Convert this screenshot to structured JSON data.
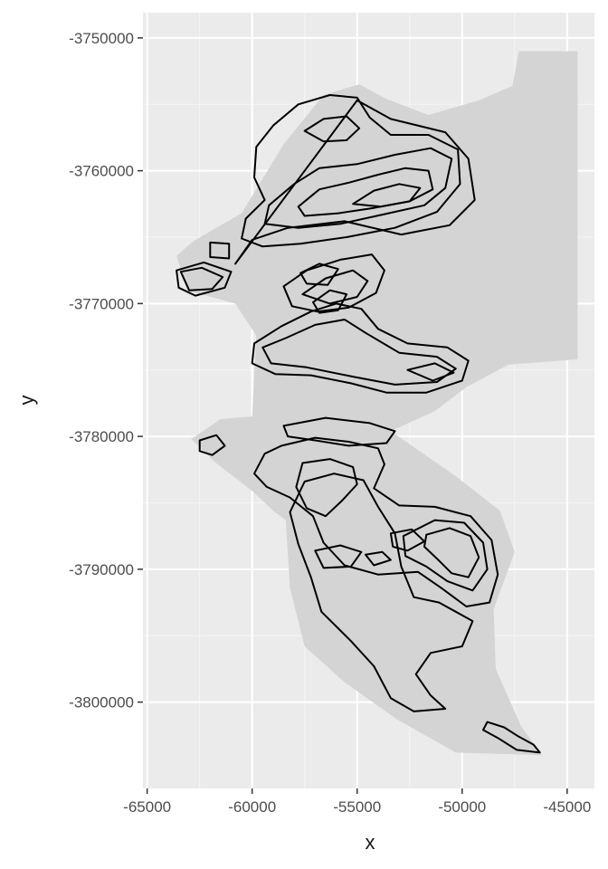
{
  "chart_data": {
    "type": "contour",
    "title": "",
    "xlabel": "x",
    "ylabel": "y",
    "xlim": [
      -65200,
      -43700
    ],
    "ylim": [
      -3806500,
      -3748100
    ],
    "x_ticks": [
      -65000,
      -60000,
      -55000,
      -50000,
      -45000
    ],
    "y_ticks": [
      -3750000,
      -3760000,
      -3770000,
      -3780000,
      -3790000,
      -3800000
    ],
    "x_tick_labels": [
      "-65000",
      "-60000",
      "-55000",
      "-50000",
      "-45000"
    ],
    "y_tick_labels": [
      "-3750000",
      "-3760000",
      "-3770000",
      "-3780000",
      "-3790000",
      "-3800000"
    ],
    "grid": true,
    "legend": "none",
    "colors": {
      "panel_background": "#ebebeb",
      "grid_major": "#ffffff",
      "grid_minor": "#f5f5f5",
      "hillshade": "#d4d4d4",
      "contour": "#000000"
    },
    "hillshade_extent": [
      [
        -62800,
        -3765300
      ],
      [
        -60500,
        -3763200
      ],
      [
        -58500,
        -3758000
      ],
      [
        -56600,
        -3754300
      ],
      [
        -54900,
        -3753500
      ],
      [
        -53600,
        -3754600
      ],
      [
        -51600,
        -3755800
      ],
      [
        -49200,
        -3754700
      ],
      [
        -47600,
        -3753600
      ],
      [
        -47300,
        -3751000
      ],
      [
        -44500,
        -3751000
      ],
      [
        -44500,
        -3774200
      ],
      [
        -47800,
        -3774600
      ],
      [
        -49800,
        -3776300
      ],
      [
        -51300,
        -3778100
      ],
      [
        -53400,
        -3779600
      ],
      [
        -50300,
        -3783000
      ],
      [
        -48200,
        -3785600
      ],
      [
        -47500,
        -3788700
      ],
      [
        -48500,
        -3793000
      ],
      [
        -48400,
        -3797500
      ],
      [
        -47200,
        -3801800
      ],
      [
        -46200,
        -3804000
      ],
      [
        -50300,
        -3803800
      ],
      [
        -53100,
        -3801300
      ],
      [
        -55600,
        -3798500
      ],
      [
        -57500,
        -3795800
      ],
      [
        -58200,
        -3791400
      ],
      [
        -58400,
        -3786300
      ],
      [
        -59000,
        -3785600
      ],
      [
        -60000,
        -3784100
      ],
      [
        -61800,
        -3781900
      ],
      [
        -62900,
        -3780200
      ],
      [
        -61500,
        -3778700
      ],
      [
        -60000,
        -3778500
      ],
      [
        -59800,
        -3772400
      ],
      [
        -60800,
        -3770000
      ],
      [
        -63100,
        -3769000
      ],
      [
        -63600,
        -3766400
      ]
    ],
    "contours": [
      [
        [
          -59200,
          -3762600
        ],
        [
          -58000,
          -3761000
        ],
        [
          -56800,
          -3759800
        ],
        [
          -55000,
          -3759500
        ],
        [
          -53200,
          -3758800
        ],
        [
          -51500,
          -3758300
        ],
        [
          -50500,
          -3759100
        ],
        [
          -50800,
          -3761300
        ],
        [
          -51800,
          -3762600
        ],
        [
          -53800,
          -3763300
        ],
        [
          -55800,
          -3764000
        ],
        [
          -57800,
          -3764300
        ],
        [
          -59400,
          -3764000
        ]
      ],
      [
        [
          -57800,
          -3762700
        ],
        [
          -56800,
          -3761400
        ],
        [
          -55400,
          -3760900
        ],
        [
          -54000,
          -3760300
        ],
        [
          -52700,
          -3759800
        ],
        [
          -51600,
          -3760000
        ],
        [
          -51400,
          -3761400
        ],
        [
          -52500,
          -3762300
        ],
        [
          -54200,
          -3762800
        ],
        [
          -55900,
          -3763200
        ],
        [
          -57500,
          -3763400
        ]
      ],
      [
        [
          -55200,
          -3762500
        ],
        [
          -54200,
          -3761500
        ],
        [
          -53000,
          -3761000
        ],
        [
          -52000,
          -3761300
        ],
        [
          -52500,
          -3762300
        ],
        [
          -53900,
          -3762700
        ]
      ],
      [
        [
          -57500,
          -3757000
        ],
        [
          -56600,
          -3756100
        ],
        [
          -55500,
          -3755900
        ],
        [
          -54900,
          -3756800
        ],
        [
          -55500,
          -3757700
        ],
        [
          -56600,
          -3757800
        ]
      ],
      [
        [
          -59000,
          -3756600
        ],
        [
          -57800,
          -3755000
        ],
        [
          -56300,
          -3754300
        ],
        [
          -55000,
          -3754500
        ],
        [
          -54400,
          -3756000
        ],
        [
          -53400,
          -3757300
        ],
        [
          -51600,
          -3757300
        ],
        [
          -50200,
          -3758400
        ],
        [
          -50100,
          -3761000
        ],
        [
          -51200,
          -3763100
        ],
        [
          -53200,
          -3764300
        ],
        [
          -55500,
          -3765000
        ],
        [
          -57700,
          -3765500
        ],
        [
          -59500,
          -3765700
        ],
        [
          -60500,
          -3765100
        ],
        [
          -60300,
          -3763600
        ],
        [
          -59400,
          -3762200
        ],
        [
          -59900,
          -3760500
        ],
        [
          -59800,
          -3758200
        ]
      ],
      [
        [
          -60800,
          -3767000
        ],
        [
          -60000,
          -3765200
        ],
        [
          -58300,
          -3764300
        ],
        [
          -55600,
          -3763800
        ],
        [
          -52900,
          -3764800
        ],
        [
          -50600,
          -3764100
        ],
        [
          -49400,
          -3762200
        ],
        [
          -49700,
          -3759100
        ],
        [
          -50800,
          -3757100
        ],
        [
          -53400,
          -3756100
        ],
        [
          -55000,
          -3754700
        ]
      ],
      [
        [
          -63600,
          -3767500
        ],
        [
          -62300,
          -3766900
        ],
        [
          -61000,
          -3767600
        ],
        [
          -61300,
          -3768800
        ],
        [
          -62700,
          -3769400
        ],
        [
          -63500,
          -3768800
        ]
      ],
      [
        [
          -63400,
          -3767600
        ],
        [
          -62400,
          -3767300
        ],
        [
          -61400,
          -3768000
        ],
        [
          -61900,
          -3768900
        ],
        [
          -63000,
          -3769000
        ]
      ],
      [
        [
          -62000,
          -3765400
        ],
        [
          -61100,
          -3765500
        ],
        [
          -61100,
          -3766600
        ],
        [
          -62000,
          -3766500
        ]
      ],
      [
        [
          -58500,
          -3768700
        ],
        [
          -57400,
          -3767500
        ],
        [
          -55800,
          -3766700
        ],
        [
          -54300,
          -3766300
        ],
        [
          -53700,
          -3767500
        ],
        [
          -54100,
          -3769200
        ],
        [
          -55400,
          -3770300
        ],
        [
          -56900,
          -3770600
        ],
        [
          -58100,
          -3770200
        ]
      ],
      [
        [
          -57600,
          -3769300
        ],
        [
          -56500,
          -3768100
        ],
        [
          -55200,
          -3767500
        ],
        [
          -54500,
          -3768300
        ],
        [
          -55000,
          -3769500
        ],
        [
          -56300,
          -3770000
        ]
      ],
      [
        [
          -59900,
          -3773000
        ],
        [
          -58600,
          -3771700
        ],
        [
          -57200,
          -3770600
        ],
        [
          -56000,
          -3770000
        ],
        [
          -54800,
          -3770400
        ],
        [
          -54000,
          -3771900
        ],
        [
          -52600,
          -3773000
        ],
        [
          -50700,
          -3773300
        ],
        [
          -49700,
          -3774300
        ],
        [
          -50000,
          -3775800
        ],
        [
          -51700,
          -3776700
        ],
        [
          -53600,
          -3776700
        ],
        [
          -55300,
          -3776000
        ],
        [
          -57200,
          -3775400
        ],
        [
          -58900,
          -3775300
        ],
        [
          -60000,
          -3774500
        ]
      ],
      [
        [
          -59500,
          -3773300
        ],
        [
          -58400,
          -3772600
        ],
        [
          -57000,
          -3771600
        ],
        [
          -55600,
          -3771200
        ],
        [
          -54600,
          -3772200
        ],
        [
          -53000,
          -3773700
        ],
        [
          -51200,
          -3774000
        ],
        [
          -50300,
          -3774900
        ],
        [
          -51200,
          -3775900
        ],
        [
          -53200,
          -3776100
        ],
        [
          -55200,
          -3775500
        ],
        [
          -57400,
          -3774800
        ],
        [
          -59100,
          -3774500
        ]
      ],
      [
        [
          -52600,
          -3775000
        ],
        [
          -51300,
          -3774500
        ],
        [
          -50400,
          -3775200
        ],
        [
          -51400,
          -3775800
        ]
      ],
      [
        [
          -57100,
          -3769900
        ],
        [
          -56300,
          -3769000
        ],
        [
          -55500,
          -3769300
        ],
        [
          -55900,
          -3770500
        ],
        [
          -56800,
          -3770700
        ]
      ],
      [
        [
          -57700,
          -3767700
        ],
        [
          -56800,
          -3767000
        ],
        [
          -55900,
          -3767400
        ],
        [
          -56400,
          -3768600
        ],
        [
          -57400,
          -3768500
        ]
      ],
      [
        [
          -58500,
          -3779200
        ],
        [
          -56500,
          -3778600
        ],
        [
          -54400,
          -3779000
        ],
        [
          -53200,
          -3779600
        ],
        [
          -53600,
          -3780500
        ],
        [
          -55400,
          -3780700
        ],
        [
          -57000,
          -3780300
        ],
        [
          -58300,
          -3780000
        ]
      ],
      [
        [
          -58600,
          -3780700
        ],
        [
          -57000,
          -3780100
        ],
        [
          -55400,
          -3780400
        ],
        [
          -54000,
          -3780900
        ],
        [
          -53700,
          -3782100
        ],
        [
          -54200,
          -3783900
        ],
        [
          -53000,
          -3785200
        ],
        [
          -51300,
          -3785300
        ],
        [
          -49600,
          -3786000
        ],
        [
          -48600,
          -3787800
        ],
        [
          -48300,
          -3790400
        ],
        [
          -48700,
          -3792500
        ],
        [
          -49800,
          -3792800
        ],
        [
          -51000,
          -3791400
        ],
        [
          -52100,
          -3790200
        ],
        [
          -54000,
          -3790400
        ],
        [
          -55600,
          -3789700
        ],
        [
          -56600,
          -3788000
        ],
        [
          -57100,
          -3786000
        ],
        [
          -58200,
          -3784600
        ],
        [
          -59300,
          -3783800
        ],
        [
          -59900,
          -3782800
        ],
        [
          -59400,
          -3781300
        ]
      ],
      [
        [
          -57600,
          -3782000
        ],
        [
          -56300,
          -3781700
        ],
        [
          -55200,
          -3782300
        ],
        [
          -55000,
          -3783600
        ],
        [
          -55700,
          -3784800
        ],
        [
          -56500,
          -3786000
        ],
        [
          -57400,
          -3785400
        ],
        [
          -57900,
          -3783800
        ]
      ],
      [
        [
          -52800,
          -3787500
        ],
        [
          -51300,
          -3786300
        ],
        [
          -49900,
          -3786500
        ],
        [
          -49000,
          -3788000
        ],
        [
          -48800,
          -3790000
        ],
        [
          -49500,
          -3791600
        ],
        [
          -50700,
          -3790900
        ],
        [
          -51700,
          -3789800
        ],
        [
          -52700,
          -3789000
        ]
      ],
      [
        [
          -51700,
          -3787400
        ],
        [
          -50600,
          -3786900
        ],
        [
          -49600,
          -3787500
        ],
        [
          -49200,
          -3789100
        ],
        [
          -49700,
          -3790600
        ],
        [
          -50500,
          -3790300
        ],
        [
          -51200,
          -3789200
        ],
        [
          -51800,
          -3788300
        ]
      ],
      [
        [
          -53400,
          -3787300
        ],
        [
          -52400,
          -3787000
        ],
        [
          -51800,
          -3787900
        ],
        [
          -52600,
          -3788600
        ],
        [
          -53300,
          -3788300
        ]
      ],
      [
        [
          -57000,
          -3788600
        ],
        [
          -55800,
          -3788200
        ],
        [
          -54800,
          -3788700
        ],
        [
          -55300,
          -3789800
        ],
        [
          -56600,
          -3789900
        ]
      ],
      [
        [
          -54600,
          -3788900
        ],
        [
          -53800,
          -3788700
        ],
        [
          -53400,
          -3789300
        ],
        [
          -54200,
          -3789700
        ]
      ],
      [
        [
          -62500,
          -3780300
        ],
        [
          -61700,
          -3779900
        ],
        [
          -61300,
          -3780700
        ],
        [
          -61900,
          -3781400
        ],
        [
          -62500,
          -3781100
        ]
      ],
      [
        [
          -57500,
          -3783400
        ],
        [
          -56100,
          -3782800
        ],
        [
          -54700,
          -3783300
        ],
        [
          -54000,
          -3785300
        ],
        [
          -53200,
          -3787300
        ],
        [
          -52900,
          -3789800
        ],
        [
          -52300,
          -3792100
        ],
        [
          -51100,
          -3792500
        ],
        [
          -49500,
          -3793900
        ],
        [
          -50000,
          -3795800
        ],
        [
          -51500,
          -3796300
        ],
        [
          -52200,
          -3797900
        ],
        [
          -51500,
          -3799500
        ],
        [
          -50800,
          -3800500
        ],
        [
          -52300,
          -3800700
        ],
        [
          -53400,
          -3799700
        ],
        [
          -54200,
          -3797300
        ],
        [
          -55300,
          -3795400
        ],
        [
          -56700,
          -3793200
        ],
        [
          -57200,
          -3790600
        ],
        [
          -57800,
          -3788100
        ],
        [
          -58200,
          -3785700
        ]
      ],
      [
        [
          -48800,
          -3801500
        ],
        [
          -48000,
          -3801900
        ],
        [
          -47300,
          -3802600
        ],
        [
          -46600,
          -3803200
        ],
        [
          -46300,
          -3803800
        ],
        [
          -47400,
          -3803600
        ],
        [
          -48300,
          -3802700
        ],
        [
          -49000,
          -3802100
        ]
      ]
    ]
  }
}
